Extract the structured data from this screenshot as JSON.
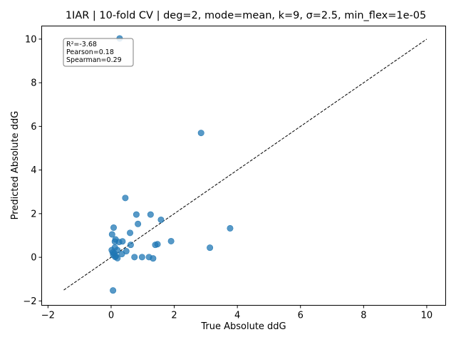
{
  "chart_data": {
    "type": "scatter",
    "title": "1IAR | 10-fold CV | deg=2, mode=mean, k=9, σ=2.5, min_flex=1e-05",
    "xlabel": "True Absolute ddG",
    "ylabel": "Predicted Absolute ddG",
    "xlim": [
      -2.2,
      10.6
    ],
    "ylim": [
      -2.2,
      10.6
    ],
    "xticks": [
      -2,
      0,
      2,
      4,
      6,
      8,
      10
    ],
    "yticks": [
      -2,
      0,
      2,
      4,
      6,
      8,
      10
    ],
    "grid": false,
    "point_color": "#1f77b4",
    "stats": [
      "R²=-3.68",
      "Pearson=0.18",
      "Spearman=0.29"
    ],
    "reference_line": {
      "style": "dashed",
      "color": "#000000",
      "from": [
        -1.5,
        -1.5
      ],
      "to": [
        10.0,
        10.0
      ]
    },
    "points": [
      {
        "x": 0.27,
        "y": 10.03
      },
      {
        "x": 2.85,
        "y": 5.7
      },
      {
        "x": 0.45,
        "y": 2.72
      },
      {
        "x": 0.8,
        "y": 1.96
      },
      {
        "x": 1.25,
        "y": 1.96
      },
      {
        "x": 1.58,
        "y": 1.72
      },
      {
        "x": 0.85,
        "y": 1.53
      },
      {
        "x": 3.77,
        "y": 1.33
      },
      {
        "x": 0.08,
        "y": 1.36
      },
      {
        "x": 0.6,
        "y": 1.12
      },
      {
        "x": 0.03,
        "y": 1.05
      },
      {
        "x": 0.14,
        "y": 0.82
      },
      {
        "x": 0.12,
        "y": 0.72
      },
      {
        "x": 0.25,
        "y": 0.7
      },
      {
        "x": 0.36,
        "y": 0.73
      },
      {
        "x": 1.9,
        "y": 0.74
      },
      {
        "x": 1.4,
        "y": 0.57
      },
      {
        "x": 1.47,
        "y": 0.6
      },
      {
        "x": 0.62,
        "y": 0.57
      },
      {
        "x": 3.13,
        "y": 0.44
      },
      {
        "x": 0.12,
        "y": 0.45
      },
      {
        "x": 0.02,
        "y": 0.33
      },
      {
        "x": 0.2,
        "y": 0.33
      },
      {
        "x": 0.48,
        "y": 0.28
      },
      {
        "x": 0.05,
        "y": 0.22
      },
      {
        "x": 0.1,
        "y": 0.18
      },
      {
        "x": 0.34,
        "y": 0.15
      },
      {
        "x": 0.07,
        "y": 0.1
      },
      {
        "x": 0.15,
        "y": 0.05
      },
      {
        "x": 0.13,
        "y": 0.02
      },
      {
        "x": 0.74,
        "y": 0.01
      },
      {
        "x": 0.98,
        "y": 0.01
      },
      {
        "x": 1.2,
        "y": 0.01
      },
      {
        "x": 0.2,
        "y": -0.04
      },
      {
        "x": 1.33,
        "y": -0.05
      },
      {
        "x": 0.06,
        "y": -1.52
      }
    ]
  }
}
